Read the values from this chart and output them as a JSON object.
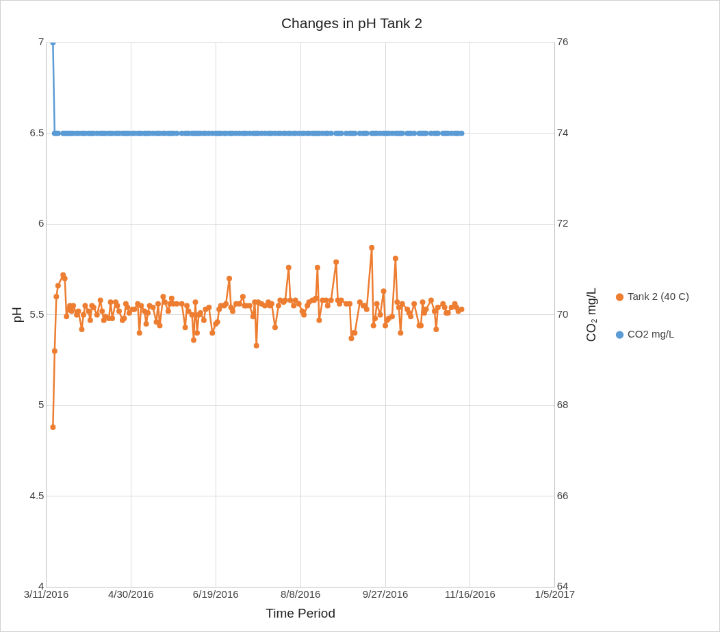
{
  "chart_data": {
    "type": "line",
    "title": "Changes in pH Tank 2",
    "xlabel": "Time Period",
    "ylabel": "pH",
    "y2label": "CO₂ mg/L",
    "x": [
      "2016-03-15",
      "2016-03-16",
      "2016-03-17",
      "2016-03-18",
      "2016-03-21",
      "2016-03-22",
      "2016-03-23",
      "2016-03-24",
      "2016-03-25",
      "2016-03-26",
      "2016-03-27",
      "2016-03-29",
      "2016-03-30",
      "2016-04-01",
      "2016-04-02",
      "2016-04-03",
      "2016-04-05",
      "2016-04-06",
      "2016-04-07",
      "2016-04-08",
      "2016-04-10",
      "2016-04-12",
      "2016-04-13",
      "2016-04-14",
      "2016-04-15",
      "2016-04-17",
      "2016-04-18",
      "2016-04-19",
      "2016-04-21",
      "2016-04-22",
      "2016-04-23",
      "2016-04-25",
      "2016-04-26",
      "2016-04-27",
      "2016-04-28",
      "2016-04-29",
      "2016-05-01",
      "2016-05-02",
      "2016-05-04",
      "2016-05-05",
      "2016-05-06",
      "2016-05-08",
      "2016-05-09",
      "2016-05-10",
      "2016-05-11",
      "2016-05-13",
      "2016-05-15",
      "2016-05-16",
      "2016-05-17",
      "2016-05-19",
      "2016-05-20",
      "2016-05-22",
      "2016-05-23",
      "2016-05-24",
      "2016-05-25",
      "2016-05-27",
      "2016-05-30",
      "2016-06-01",
      "2016-06-02",
      "2016-06-03",
      "2016-06-05",
      "2016-06-06",
      "2016-06-07",
      "2016-06-08",
      "2016-06-09",
      "2016-06-10",
      "2016-06-12",
      "2016-06-13",
      "2016-06-15",
      "2016-06-17",
      "2016-06-19",
      "2016-06-20",
      "2016-06-21",
      "2016-06-22",
      "2016-06-24",
      "2016-06-25",
      "2016-06-27",
      "2016-06-28",
      "2016-06-29",
      "2016-07-01",
      "2016-07-03",
      "2016-07-05",
      "2016-07-06",
      "2016-07-07",
      "2016-07-09",
      "2016-07-11",
      "2016-07-12",
      "2016-07-13",
      "2016-07-14",
      "2016-07-16",
      "2016-07-18",
      "2016-07-20",
      "2016-07-21",
      "2016-07-22",
      "2016-07-24",
      "2016-07-26",
      "2016-07-27",
      "2016-07-29",
      "2016-07-30",
      "2016-08-01",
      "2016-08-02",
      "2016-08-04",
      "2016-08-05",
      "2016-08-07",
      "2016-08-09",
      "2016-08-10",
      "2016-08-12",
      "2016-08-13",
      "2016-08-15",
      "2016-08-16",
      "2016-08-17",
      "2016-08-18",
      "2016-08-19",
      "2016-08-21",
      "2016-08-23",
      "2016-08-24",
      "2016-08-26",
      "2016-08-29",
      "2016-08-30",
      "2016-08-31",
      "2016-09-01",
      "2016-09-04",
      "2016-09-06",
      "2016-09-07",
      "2016-09-08",
      "2016-09-09",
      "2016-09-12",
      "2016-09-14",
      "2016-09-15",
      "2016-09-16",
      "2016-09-19",
      "2016-09-20",
      "2016-09-21",
      "2016-09-22",
      "2016-09-24",
      "2016-09-26",
      "2016-09-27",
      "2016-09-28",
      "2016-09-29",
      "2016-10-01",
      "2016-10-03",
      "2016-10-04",
      "2016-10-05",
      "2016-10-06",
      "2016-10-07",
      "2016-10-10",
      "2016-10-11",
      "2016-10-12",
      "2016-10-14",
      "2016-10-17",
      "2016-10-18",
      "2016-10-19",
      "2016-10-20",
      "2016-10-21",
      "2016-10-24",
      "2016-10-26",
      "2016-10-27",
      "2016-10-28",
      "2016-10-31",
      "2016-11-01",
      "2016-11-02",
      "2016-11-03",
      "2016-11-05",
      "2016-11-07",
      "2016-11-08",
      "2016-11-09",
      "2016-11-11"
    ],
    "series": [
      {
        "name": "Tank 2 (40 C)",
        "color": "#ed7d31",
        "values": [
          4.88,
          5.3,
          5.6,
          5.66,
          5.72,
          5.7,
          5.49,
          5.53,
          5.55,
          5.52,
          5.55,
          5.5,
          5.52,
          5.42,
          5.5,
          5.55,
          5.52,
          5.47,
          5.55,
          5.54,
          5.5,
          5.58,
          5.52,
          5.47,
          5.49,
          5.48,
          5.57,
          5.48,
          5.57,
          5.55,
          5.52,
          5.47,
          5.48,
          5.56,
          5.54,
          5.51,
          5.53,
          5.53,
          5.56,
          5.4,
          5.55,
          5.52,
          5.45,
          5.51,
          5.55,
          5.54,
          5.46,
          5.56,
          5.44,
          5.6,
          5.57,
          5.52,
          5.56,
          5.59,
          5.56,
          5.56,
          5.56,
          5.43,
          5.55,
          5.52,
          5.5,
          5.36,
          5.57,
          5.4,
          5.5,
          5.51,
          5.47,
          5.53,
          5.54,
          5.4,
          5.45,
          5.46,
          5.53,
          5.55,
          5.55,
          5.56,
          5.7,
          5.54,
          5.52,
          5.56,
          5.56,
          5.6,
          5.55,
          5.55,
          5.55,
          5.49,
          5.57,
          5.33,
          5.57,
          5.56,
          5.55,
          5.57,
          5.55,
          5.56,
          5.43,
          5.55,
          5.58,
          5.57,
          5.58,
          5.76,
          5.58,
          5.55,
          5.58,
          5.56,
          5.52,
          5.5,
          5.55,
          5.57,
          5.58,
          5.58,
          5.59,
          5.76,
          5.47,
          5.58,
          5.58,
          5.55,
          5.58,
          5.79,
          5.58,
          5.56,
          5.58,
          5.56,
          5.56,
          5.37,
          5.4,
          5.4,
          5.57,
          5.55,
          5.55,
          5.53,
          5.87,
          5.44,
          5.48,
          5.56,
          5.5,
          5.63,
          5.44,
          5.47,
          5.48,
          5.49,
          5.81,
          5.57,
          5.54,
          5.4,
          5.56,
          5.53,
          5.51,
          5.49,
          5.56,
          5.44,
          5.44,
          5.57,
          5.51,
          5.53,
          5.58,
          5.52,
          5.42,
          5.54,
          5.56,
          5.54,
          5.51,
          5.51,
          5.54,
          5.56,
          5.54,
          5.52,
          5.53
        ]
      },
      {
        "name": "CO2 mg/L",
        "color": "#5b9bd5",
        "axis": "y2",
        "values": [
          76,
          74,
          74,
          74,
          74,
          74,
          74,
          74,
          74,
          74,
          74,
          74,
          74,
          74,
          74,
          74,
          74,
          74,
          74,
          74,
          74,
          74,
          74,
          74,
          74,
          74,
          74,
          74,
          74,
          74,
          74,
          74,
          74,
          74,
          74,
          74,
          74,
          74,
          74,
          74,
          74,
          74,
          74,
          74,
          74,
          74,
          74,
          74,
          74,
          74,
          74,
          74,
          74,
          74,
          74,
          74,
          74,
          74,
          74,
          74,
          74,
          74,
          74,
          74,
          74,
          74,
          74,
          74,
          74,
          74,
          74,
          74,
          74,
          74,
          74,
          74,
          74,
          74,
          74,
          74,
          74,
          74,
          74,
          74,
          74,
          74,
          74,
          74,
          74,
          74,
          74,
          74,
          74,
          74,
          74,
          74,
          74,
          74,
          74,
          74,
          74,
          74,
          74,
          74,
          74,
          74,
          74,
          74,
          74,
          74,
          74,
          74,
          74,
          74,
          74,
          74,
          74,
          74,
          74,
          74,
          74,
          74,
          74,
          74,
          74,
          74,
          74,
          74,
          74,
          74,
          74,
          74,
          74,
          74,
          74,
          74,
          74,
          74,
          74,
          74,
          74,
          74,
          74,
          74,
          74,
          74,
          74,
          74,
          74,
          74,
          74,
          74,
          74,
          74,
          74,
          74,
          74,
          74,
          74,
          74,
          74,
          74,
          74,
          74,
          74,
          74,
          74
        ]
      }
    ],
    "xlim": [
      "2016-03-11",
      "2017-01-05"
    ],
    "xticks": [
      {
        "value": "2016-03-11",
        "label": "3/11/2016"
      },
      {
        "value": "2016-04-30",
        "label": "4/30/2016"
      },
      {
        "value": "2016-06-19",
        "label": "6/19/2016"
      },
      {
        "value": "2016-08-08",
        "label": "8/8/2016"
      },
      {
        "value": "2016-09-27",
        "label": "9/27/2016"
      },
      {
        "value": "2016-11-16",
        "label": "11/16/2016"
      },
      {
        "value": "2017-01-05",
        "label": "1/5/2017"
      }
    ],
    "ylim": [
      4,
      7
    ],
    "yticks": [
      4,
      4.5,
      5,
      5.5,
      6,
      6.5,
      7
    ],
    "y2lim": [
      64,
      76
    ],
    "y2ticks": [
      64,
      66,
      68,
      70,
      72,
      74,
      76
    ],
    "grid": true,
    "legend": "right",
    "marker": "circle",
    "line_style": "solid"
  }
}
